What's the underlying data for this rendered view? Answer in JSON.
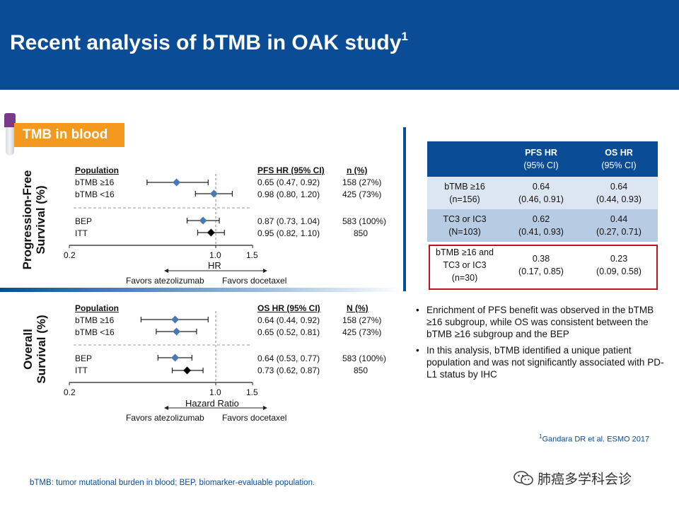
{
  "title": {
    "main": "Recent analysis of bTMB in OAK study",
    "sup": "1"
  },
  "tmb_label": "TMB in blood",
  "pfs_panel": {
    "ylabel_line1": "Progression-Free",
    "ylabel_line2": "Survival (%)",
    "col_population": "Population",
    "col_hr": "PFS HR (95% CI)",
    "col_n": "n (%)",
    "rows": [
      {
        "label": "bTMB ≥16",
        "hr": 0.65,
        "lo": 0.47,
        "hi": 0.92,
        "hr_text": "0.65 (0.47, 0.92)",
        "n_text": "158 (27%)",
        "marker": "blue"
      },
      {
        "label": "bTMB <16",
        "hr": 0.98,
        "lo": 0.8,
        "hi": 1.2,
        "hr_text": "0.98 (0.80, 1.20)",
        "n_text": "425 (73%)",
        "marker": "blue"
      },
      {
        "label": "BEP",
        "hr": 0.87,
        "lo": 0.73,
        "hi": 1.04,
        "hr_text": "0.87 (0.73, 1.04)",
        "n_text": "583 (100%)",
        "marker": "blue"
      },
      {
        "label": "ITT",
        "hr": 0.95,
        "lo": 0.82,
        "hi": 1.1,
        "hr_text": "0.95 (0.82, 1.10)",
        "n_text": "850",
        "marker": "black"
      }
    ],
    "ticks": [
      "0.2",
      "1.0",
      "1.5"
    ],
    "xlabel": "HR",
    "favors_left": "Favors atezolizumab",
    "favors_right": "Favors docetaxel"
  },
  "os_panel": {
    "ylabel_line1": "Overall",
    "ylabel_line2": "Survival (%)",
    "col_population": "Population",
    "col_hr": "OS HR (95% CI)",
    "col_n": "N (%)",
    "rows": [
      {
        "label": "bTMB ≥16",
        "hr": 0.64,
        "lo": 0.44,
        "hi": 0.92,
        "hr_text": "0.64 (0.44, 0.92)",
        "n_text": "158 (27%)",
        "marker": "blue"
      },
      {
        "label": "bTMB <16",
        "hr": 0.65,
        "lo": 0.52,
        "hi": 0.81,
        "hr_text": "0.65 (0.52, 0.81)",
        "n_text": "425 (73%)",
        "marker": "blue"
      },
      {
        "label": "BEP",
        "hr": 0.64,
        "lo": 0.53,
        "hi": 0.77,
        "hr_text": "0.64 (0.53, 0.77)",
        "n_text": "583 (100%)",
        "marker": "blue"
      },
      {
        "label": "ITT",
        "hr": 0.73,
        "lo": 0.62,
        "hi": 0.87,
        "hr_text": "0.73 (0.62, 0.87)",
        "n_text": "850",
        "marker": "black"
      }
    ],
    "ticks": [
      "0.2",
      "1.0",
      "1.5"
    ],
    "xlabel": "Hazard  Ratio",
    "favors_left": "Favors atezolizumab",
    "favors_right": "Favors docetaxel"
  },
  "hr_table": {
    "headers": [
      {
        "line1": "PFS HR",
        "line2": "(95% CI)"
      },
      {
        "line1": "OS HR",
        "line2": "(95% CI)"
      }
    ],
    "rows": [
      {
        "group1": "bTMB ≥16",
        "group2": "(n=156)",
        "group3": "",
        "pfs1": "0.64",
        "pfs2": "(0.46, 0.91)",
        "os1": "0.64",
        "os2": "(0.44, 0.93)"
      },
      {
        "group1": "TC3 or IC3",
        "group2": "(N=103)",
        "group3": "",
        "pfs1": "0.62",
        "pfs2": "(0.41, 0.93)",
        "os1": "0.44",
        "os2": "(0.27, 0.71)"
      },
      {
        "group1": "bTMB ≥16 and",
        "group2": "TC3 or IC3",
        "group3": "(n=30)",
        "pfs1": "0.38",
        "pfs2": "(0.17, 0.85)",
        "os1": "0.23",
        "os2": "(0.09, 0.58)"
      }
    ]
  },
  "bullets": [
    "Enrichment of PFS benefit was observed in the bTMB ≥16 subgroup, while OS was consistent between the bTMB ≥16 subgroup and the BEP",
    "In this analysis, bTMB identified a unique patient population and was not significantly associated with PD-L1 status by IHC"
  ],
  "reference": {
    "sup": "1",
    "text": "Gandara DR et al. ESMO 2017"
  },
  "footnote": "bTMB: tumor mutational burden in blood; BEP, biomarker-evaluable  population.",
  "watermark": "肺癌多学科会诊",
  "colors": {
    "header": "#0a4c96",
    "accent": "#f39a1e",
    "blue_marker": "#4a78b5",
    "highlight_border": "#c0121d"
  }
}
